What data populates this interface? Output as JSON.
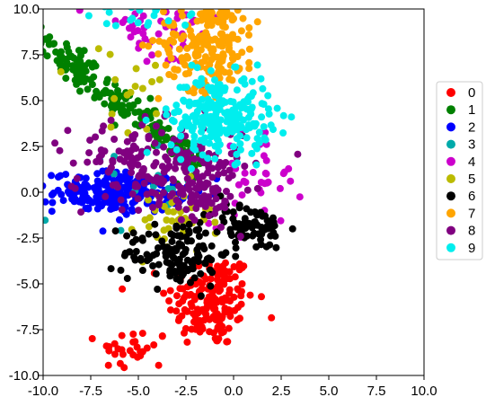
{
  "chart_data": {
    "type": "scatter",
    "title": "",
    "xlabel": "",
    "ylabel": "",
    "xlim": [
      -10,
      10
    ],
    "ylim": [
      -10,
      10
    ],
    "x_ticks": [
      -10,
      -7.5,
      -5,
      -2.5,
      0,
      2.5,
      5,
      7.5,
      10
    ],
    "x_tick_labels": [
      "-10.0",
      "-7.5",
      "-5.0",
      "-2.5",
      "0.0",
      "2.5",
      "5.0",
      "7.5",
      "10.0"
    ],
    "y_ticks": [
      10,
      7.5,
      5,
      2.5,
      0,
      -2.5,
      -5,
      -7.5,
      -10
    ],
    "y_tick_labels": [
      "10.0",
      "7.5",
      "5.0",
      "2.5",
      "0.0",
      "-2.5",
      "-5.0",
      "-7.5",
      "-10.0"
    ],
    "grid": false,
    "legend_position": "right",
    "series": [
      {
        "name": "0",
        "color": "#ff0000",
        "clusters": [
          {
            "cx": -1.2,
            "cy": -5.9,
            "sx": 1.15,
            "sy": 1.3,
            "n": 170
          },
          {
            "cx": -5.2,
            "cy": -8.6,
            "sx": 0.9,
            "sy": 0.6,
            "n": 30
          }
        ]
      },
      {
        "name": "1",
        "color": "#008000",
        "clusters": [
          {
            "line": [
              [
                -10,
                8.2
              ],
              [
                -2.0,
                1.6
              ]
            ],
            "spread": 0.45,
            "n": 200
          }
        ]
      },
      {
        "name": "2",
        "color": "#0000ff",
        "clusters": [
          {
            "cx": -6.0,
            "cy": 0.0,
            "sx": 1.7,
            "sy": 0.55,
            "n": 220
          }
        ]
      },
      {
        "name": "3",
        "color": "#00aaaa",
        "clusters": [
          {
            "cx": -6.0,
            "cy": -0.2,
            "sx": 2.0,
            "sy": 1.6,
            "n": 15
          }
        ]
      },
      {
        "name": "4",
        "color": "#cc00cc",
        "clusters": [
          {
            "cx": -4.0,
            "cy": 8.8,
            "sx": 1.7,
            "sy": 1.0,
            "n": 50
          },
          {
            "cx": 1.2,
            "cy": 1.0,
            "sx": 1.2,
            "sy": 1.4,
            "n": 40
          }
        ]
      },
      {
        "name": "5",
        "color": "#bbbb00",
        "clusters": [
          {
            "cx": -3.2,
            "cy": -1.6,
            "sx": 1.0,
            "sy": 1.0,
            "n": 40
          },
          {
            "cx": -5.5,
            "cy": 5.0,
            "sx": 1.4,
            "sy": 1.6,
            "n": 18
          }
        ]
      },
      {
        "name": "6",
        "color": "#000000",
        "clusters": [
          {
            "cx": -3.0,
            "cy": -3.3,
            "sx": 1.4,
            "sy": 0.9,
            "n": 130
          },
          {
            "cx": 0.8,
            "cy": -1.9,
            "sx": 1.0,
            "sy": 0.6,
            "n": 80
          }
        ]
      },
      {
        "name": "7",
        "color": "#ffa500",
        "clusters": [
          {
            "cx": -1.3,
            "cy": 8.2,
            "sx": 1.3,
            "sy": 1.3,
            "n": 200
          }
        ]
      },
      {
        "name": "8",
        "color": "#800080",
        "clusters": [
          {
            "cx": -4.0,
            "cy": 1.6,
            "sx": 2.3,
            "sy": 1.1,
            "n": 180
          },
          {
            "cx": -1.5,
            "cy": -0.1,
            "sx": 0.9,
            "sy": 0.8,
            "n": 70
          }
        ]
      },
      {
        "name": "9",
        "color": "#00eeee",
        "clusters": [
          {
            "cx": -0.7,
            "cy": 4.2,
            "sx": 1.3,
            "sy": 1.1,
            "n": 250
          },
          {
            "cx": -4.5,
            "cy": 9.5,
            "sx": 1.5,
            "sy": 0.4,
            "n": 20
          }
        ]
      }
    ]
  }
}
